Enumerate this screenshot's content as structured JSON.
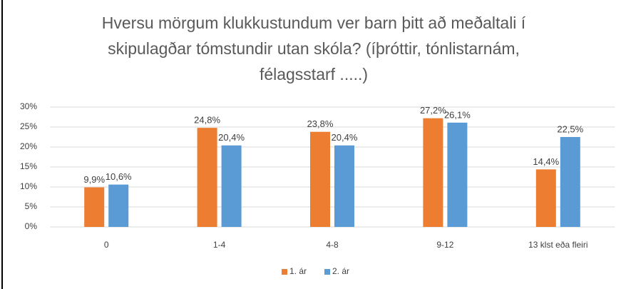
{
  "chart_data": {
    "type": "bar",
    "title": "Hversu mörgum klukkustundum ver barn þitt að meðaltali í skipulagðar tómstundir utan skóla? (íþróttir, tónlistarnám, félagsstarf .....)",
    "categories": [
      "0",
      "1-4",
      "4-8",
      "9-12",
      "13 klst eða fleiri"
    ],
    "series": [
      {
        "name": "1. ár",
        "color": "#ed7d31",
        "values": [
          9.9,
          24.8,
          23.8,
          27.2,
          14.4
        ],
        "value_labels": [
          "9,9%",
          "24,8%",
          "23,8%",
          "27,2%",
          "14,4%"
        ]
      },
      {
        "name": "2. ár",
        "color": "#5b9bd5",
        "values": [
          10.6,
          20.4,
          20.4,
          26.1,
          22.5
        ],
        "value_labels": [
          "10,6%",
          "20,4%",
          "20,4%",
          "26,1%",
          "22,5%"
        ]
      }
    ],
    "ylim": [
      0,
      30
    ],
    "yticks": [
      {
        "value": 0,
        "label": "0%"
      },
      {
        "value": 5,
        "label": "5%"
      },
      {
        "value": 10,
        "label": "10%"
      },
      {
        "value": 15,
        "label": "15%"
      },
      {
        "value": 20,
        "label": "20%"
      },
      {
        "value": 25,
        "label": "25%"
      },
      {
        "value": 30,
        "label": "30%"
      }
    ],
    "grid": true,
    "legend": "bottom"
  }
}
